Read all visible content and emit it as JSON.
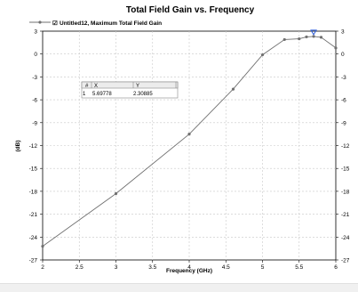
{
  "chart_data": {
    "type": "line",
    "title": "Total Field Gain vs. Frequency",
    "xlabel": "Frequency (GHz)",
    "ylabel": "(dB)",
    "xlim": [
      2,
      6
    ],
    "ylim": [
      -27,
      3
    ],
    "xticks": [
      "2",
      "2.5",
      "3",
      "3.5",
      "4",
      "4.5",
      "5",
      "5.5",
      "6"
    ],
    "yticks": [
      "3",
      "0",
      "-3",
      "-6",
      "-9",
      "-12",
      "-15",
      "-18",
      "-21",
      "-24",
      "-27"
    ],
    "grid": true,
    "legend_position": "top-left",
    "series": [
      {
        "name": "Untitled12, Maximum Total Field Gain",
        "color": "#707070",
        "x": [
          2.0,
          3.0,
          4.0,
          4.6,
          5.0,
          5.3,
          5.5,
          5.6,
          5.69778,
          5.8,
          6.0
        ],
        "y": [
          -25.2,
          -18.3,
          -10.5,
          -4.6,
          -0.1,
          1.9,
          2.0,
          2.25,
          2.30885,
          2.2,
          0.8
        ]
      }
    ],
    "marker": {
      "x": 5.69778,
      "y": 2.30885
    }
  },
  "marker_table": {
    "headers": [
      "#",
      "X",
      "Y"
    ],
    "row": [
      "1",
      "5.69778",
      "2.30885"
    ]
  },
  "legend_checkbox": "☑"
}
